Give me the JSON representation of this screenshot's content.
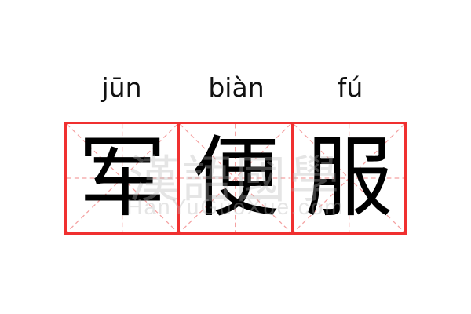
{
  "words": [
    {
      "pinyin": "jūn",
      "char": "军"
    },
    {
      "pinyin": "biàn",
      "char": "便"
    },
    {
      "pinyin": "fú",
      "char": "服"
    }
  ],
  "watermark": {
    "cn": "漢語國學",
    "en": "HanYuGuoXue.com"
  },
  "colors": {
    "border": "#f03030",
    "guide": "#f4a0a0",
    "text": "#000000"
  }
}
